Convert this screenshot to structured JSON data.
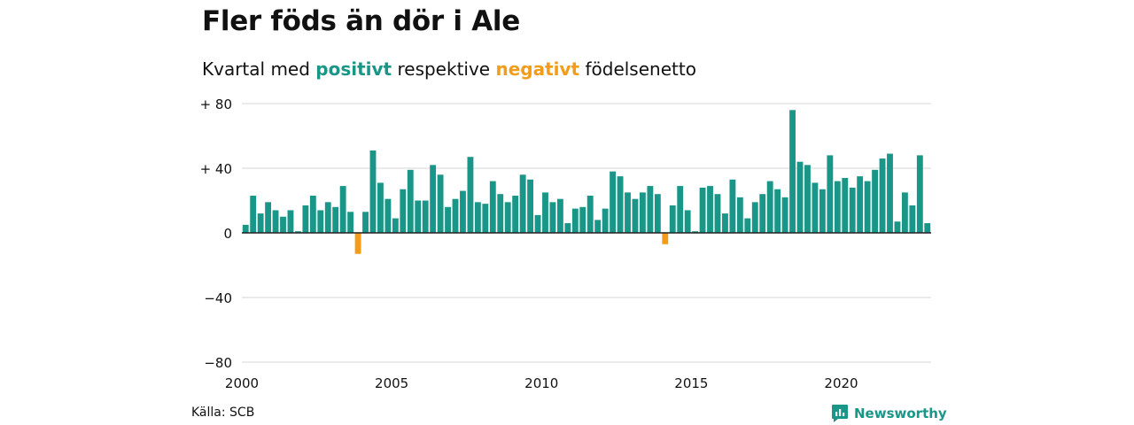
{
  "header": {
    "title": "Fler föds än dör i Ale",
    "subtitle_prefix": "Kvartal med ",
    "subtitle_positive": "positivt",
    "subtitle_middle": " respektive ",
    "subtitle_negative": "negativt",
    "subtitle_suffix": " födelsenetto"
  },
  "footer": {
    "source": "Källa: SCB",
    "brand": "Newsworthy"
  },
  "colors": {
    "positive": "#1a9688",
    "negative": "#f39c1a",
    "grid": "#dddddd",
    "axis": "#222222"
  },
  "chart_data": {
    "type": "bar",
    "x_start": 2000.0,
    "x_step": 0.25,
    "xticks": [
      2000,
      2005,
      2010,
      2015,
      2020
    ],
    "ylim": [
      -80,
      80
    ],
    "yticks": [
      80,
      40,
      0,
      -40,
      -80
    ],
    "ytick_labels": [
      "+ 80",
      "+ 40",
      "0",
      "−40",
      "−80"
    ],
    "grid": true,
    "values": [
      5,
      23,
      12,
      19,
      14,
      10,
      14,
      1,
      17,
      23,
      14,
      19,
      16,
      29,
      13,
      -13,
      13,
      51,
      31,
      21,
      9,
      27,
      39,
      20,
      20,
      42,
      36,
      16,
      21,
      26,
      47,
      19,
      18,
      32,
      24,
      19,
      23,
      36,
      33,
      11,
      25,
      19,
      21,
      6,
      15,
      16,
      23,
      8,
      15,
      38,
      35,
      25,
      21,
      25,
      29,
      24,
      -7,
      17,
      29,
      14,
      1,
      28,
      29,
      24,
      12,
      33,
      22,
      9,
      19,
      24,
      32,
      27,
      22,
      76,
      44,
      42,
      31,
      27,
      48,
      32,
      34,
      28,
      35,
      32,
      39,
      46,
      49,
      7,
      25,
      17,
      48,
      6
    ]
  }
}
